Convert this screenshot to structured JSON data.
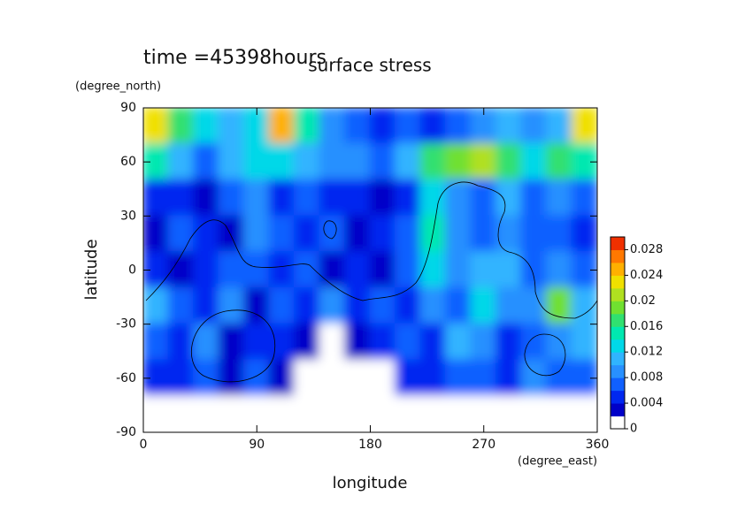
{
  "chart_data": {
    "type": "contour",
    "title": "surface stress",
    "subtitle": "time =45398hours",
    "x_label": "longitude",
    "x_unit": "(degree_east)",
    "y_label": "latitude",
    "y_unit": "(degree_north)",
    "xlim": [
      0,
      360
    ],
    "xticks": [
      0,
      90,
      180,
      270,
      360
    ],
    "ylim": [
      -90,
      90
    ],
    "yticks": [
      -90,
      -60,
      -30,
      0,
      30,
      60,
      90
    ],
    "x": [
      10,
      30,
      50,
      70,
      90,
      110,
      130,
      150,
      170,
      190,
      210,
      230,
      250,
      270,
      290,
      310,
      330,
      350
    ],
    "y": [
      80,
      60,
      40,
      20,
      0,
      -20,
      -40,
      -60,
      -80
    ],
    "z": [
      [
        0.022,
        0.016,
        0.012,
        0.01,
        0.012,
        0.024,
        0.014,
        0.008,
        0.006,
        0.004,
        0.006,
        0.004,
        0.006,
        0.008,
        0.01,
        0.008,
        0.01,
        0.022
      ],
      [
        0.014,
        0.01,
        0.006,
        0.01,
        0.012,
        0.012,
        0.01,
        0.008,
        0.008,
        0.006,
        0.01,
        0.016,
        0.018,
        0.02,
        0.016,
        0.012,
        0.016,
        0.014
      ],
      [
        0.004,
        0.004,
        0.002,
        0.006,
        0.008,
        0.004,
        0.006,
        0.004,
        0.004,
        0.002,
        0.004,
        0.012,
        0.008,
        0.006,
        0.01,
        0.006,
        0.008,
        0.006
      ],
      [
        0.002,
        0.006,
        0.004,
        0.002,
        0.008,
        0.006,
        0.004,
        0.006,
        0.002,
        0.004,
        0.006,
        0.014,
        0.008,
        0.006,
        0.008,
        0.006,
        0.006,
        0.004
      ],
      [
        0.004,
        0.002,
        0.004,
        0.006,
        0.006,
        0.004,
        0.006,
        0.002,
        0.004,
        0.002,
        0.006,
        0.012,
        0.008,
        0.01,
        0.01,
        0.006,
        0.008,
        0.006
      ],
      [
        0.01,
        0.006,
        0.004,
        0.008,
        0.002,
        0.006,
        0.004,
        0.008,
        0.004,
        0.006,
        0.004,
        0.008,
        0.006,
        0.012,
        0.008,
        0.008,
        0.018,
        0.01
      ],
      [
        0.006,
        0.004,
        0.008,
        0.002,
        0.004,
        0.004,
        0.002,
        0,
        0.002,
        0.004,
        0.006,
        0.004,
        0.01,
        0.008,
        0.004,
        0.006,
        0.008,
        0.01
      ],
      [
        0.004,
        0.004,
        0.006,
        0.002,
        0.006,
        0.002,
        0,
        0,
        0,
        0,
        0.004,
        0.004,
        0.006,
        0.006,
        0.004,
        0.008,
        0.006,
        0.006
      ],
      [
        0,
        0,
        0,
        0,
        0,
        0,
        0,
        0,
        0,
        0,
        0,
        0,
        0,
        0,
        0,
        0,
        0,
        0
      ]
    ],
    "clim": [
      0,
      0.03
    ],
    "cticks": [
      0,
      0.004,
      0.008,
      0.012,
      0.016,
      0.02,
      0.024,
      0.028
    ],
    "colors": [
      "#ffffff",
      "#0000c8",
      "#0028f0",
      "#1060ff",
      "#2890ff",
      "#30b4ff",
      "#00d8e8",
      "#00e8b0",
      "#30e070",
      "#70e030",
      "#b0e020",
      "#f0e000",
      "#ffb000",
      "#ff7800",
      "#f03000"
    ]
  }
}
